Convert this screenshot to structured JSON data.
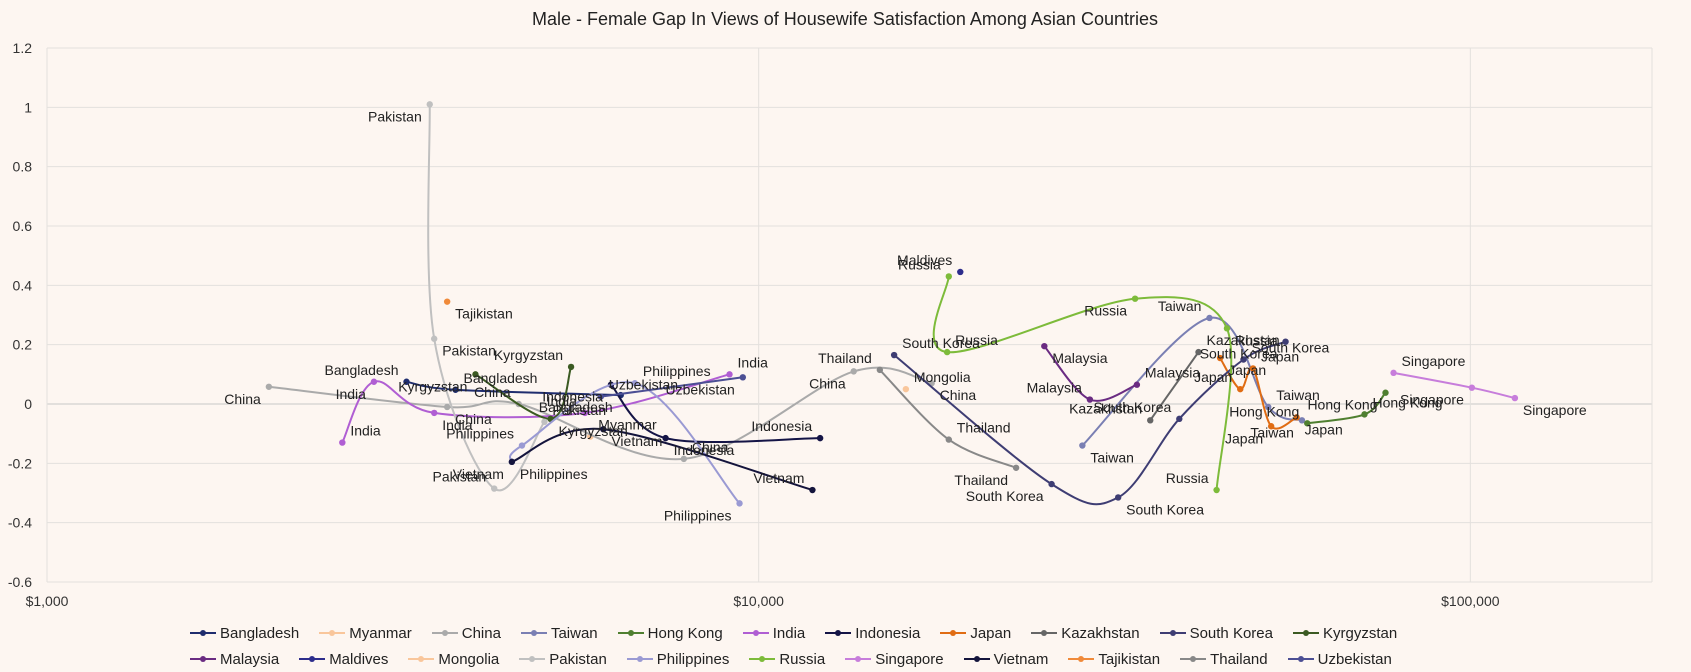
{
  "chart_data": {
    "type": "scatter",
    "title": "Male - Female Gap In Views of Housewife Satisfaction Among Asian Countries",
    "xlabel": "",
    "ylabel": "",
    "x_scale": "log",
    "xlim": [
      1000,
      180000
    ],
    "ylim": [
      -0.6,
      1.2
    ],
    "x_ticks": [
      1000,
      10000,
      100000
    ],
    "x_tick_labels": [
      "$1,000",
      "$10,000",
      "$100,000"
    ],
    "y_ticks": [
      -0.6,
      -0.4,
      -0.2,
      0,
      0.2,
      0.4,
      0.6,
      0.8,
      1,
      1.2
    ],
    "y_tick_labels": [
      "-0.6",
      "-0.4",
      "-0.2",
      "0",
      "0.2",
      "0.4",
      "0.6",
      "0.8",
      "1",
      "1.2"
    ],
    "grid": true,
    "legend_position": "bottom",
    "series": [
      {
        "name": "Bangladesh",
        "color": "#1f2d6e",
        "points": [
          {
            "x": 3200,
            "y": 0.075,
            "label": "Bangladesh"
          },
          {
            "x": 3750,
            "y": 0.048,
            "label": "Bangladesh"
          },
          {
            "x": 6400,
            "y": 0.03,
            "label": "Bangladesh"
          }
        ]
      },
      {
        "name": "Myanmar",
        "color": "#f9c69b",
        "points": [
          {
            "x": 5800,
            "y": -0.11,
            "label": "Myanmar"
          }
        ]
      },
      {
        "name": "China",
        "color": "#aaaaaa",
        "points": [
          {
            "x": 2050,
            "y": 0.058,
            "label": "China"
          },
          {
            "x": 3650,
            "y": -0.01,
            "label": "China"
          },
          {
            "x": 4600,
            "y": 0.0,
            "label": "China"
          },
          {
            "x": 7850,
            "y": -0.185,
            "label": "China"
          },
          {
            "x": 13600,
            "y": 0.11,
            "label": "China"
          },
          {
            "x": 17500,
            "y": 0.07,
            "label": "China"
          }
        ]
      },
      {
        "name": "Taiwan",
        "color": "#7a7fb3",
        "points": [
          {
            "x": 28500,
            "y": -0.14,
            "label": "Taiwan"
          },
          {
            "x": 43000,
            "y": 0.29,
            "label": "Taiwan"
          },
          {
            "x": 52000,
            "y": -0.01,
            "label": "Taiwan"
          },
          {
            "x": 58000,
            "y": -0.055,
            "label": "Taiwan"
          }
        ]
      },
      {
        "name": "Hong Kong",
        "color": "#4f7f30",
        "points": [
          {
            "x": 59000,
            "y": -0.065,
            "label": "Hong Kong"
          },
          {
            "x": 71000,
            "y": -0.035,
            "label": "Hong Kong"
          },
          {
            "x": 76000,
            "y": 0.038,
            "label": "Hong Kong"
          }
        ]
      },
      {
        "name": "India",
        "color": "#b05ed3",
        "points": [
          {
            "x": 2600,
            "y": -0.13,
            "label": "India"
          },
          {
            "x": 2880,
            "y": 0.075,
            "label": "India"
          },
          {
            "x": 3500,
            "y": -0.03,
            "label": "India"
          },
          {
            "x": 5700,
            "y": -0.03,
            "label": "India"
          },
          {
            "x": 9100,
            "y": 0.1,
            "label": "India"
          }
        ]
      },
      {
        "name": "Indonesia",
        "color": "#141446",
        "points": [
          {
            "x": 6200,
            "y": 0.065,
            "label": "Indonesia"
          },
          {
            "x": 7400,
            "y": -0.115,
            "label": "Indonesia"
          },
          {
            "x": 12200,
            "y": -0.115,
            "label": "Indonesia"
          }
        ]
      },
      {
        "name": "Japan",
        "color": "#e06c13",
        "points": [
          {
            "x": 44500,
            "y": 0.155,
            "label": "Japan"
          },
          {
            "x": 47500,
            "y": 0.05,
            "label": "Japan"
          },
          {
            "x": 49500,
            "y": 0.12,
            "label": "Japan"
          },
          {
            "x": 52500,
            "y": -0.075,
            "label": "Japan"
          },
          {
            "x": 57000,
            "y": -0.045,
            "label": "Japan"
          }
        ]
      },
      {
        "name": "Kazakhstan",
        "color": "#666666",
        "points": [
          {
            "x": 35500,
            "y": -0.055,
            "label": "Kazakhstan"
          },
          {
            "x": 41500,
            "y": 0.175,
            "label": "Kazakhstan"
          }
        ]
      },
      {
        "name": "South Korea",
        "color": "#3e3d73",
        "points": [
          {
            "x": 15500,
            "y": 0.165,
            "label": "South Korea"
          },
          {
            "x": 25800,
            "y": -0.27,
            "label": "South Korea"
          },
          {
            "x": 32000,
            "y": -0.315,
            "label": "South Korea"
          },
          {
            "x": 39000,
            "y": -0.05,
            "label": "South Korea"
          },
          {
            "x": 48000,
            "y": 0.15,
            "label": "South Korea"
          },
          {
            "x": 55000,
            "y": 0.21,
            "label": "South Korea"
          }
        ]
      },
      {
        "name": "Kyrgyzstan",
        "color": "#3b5a22",
        "points": [
          {
            "x": 4000,
            "y": 0.1,
            "label": "Kyrgyzstan"
          },
          {
            "x": 5100,
            "y": -0.05,
            "label": "Kyrgyzstan"
          },
          {
            "x": 5450,
            "y": 0.125,
            "label": "Kyrgyzstan"
          }
        ]
      },
      {
        "name": "Malaysia",
        "color": "#6a2b82",
        "points": [
          {
            "x": 25200,
            "y": 0.195,
            "label": "Malaysia"
          },
          {
            "x": 29200,
            "y": 0.015,
            "label": "Malaysia"
          },
          {
            "x": 34000,
            "y": 0.065,
            "label": "Malaysia"
          }
        ]
      },
      {
        "name": "Maldives",
        "color": "#2d2d8c",
        "points": [
          {
            "x": 19200,
            "y": 0.445,
            "label": "Maldives"
          }
        ]
      },
      {
        "name": "Mongolia",
        "color": "#f9c69b",
        "points": [
          {
            "x": 16100,
            "y": 0.05,
            "label": "Mongolia"
          }
        ]
      },
      {
        "name": "Pakistan",
        "color": "#c0c0c0",
        "points": [
          {
            "x": 3450,
            "y": 1.01,
            "label": "Pakistan"
          },
          {
            "x": 3500,
            "y": 0.22,
            "label": "Pakistan"
          },
          {
            "x": 4250,
            "y": -0.285,
            "label": "Pakistan"
          },
          {
            "x": 5000,
            "y": -0.06,
            "label": "Pakistan"
          }
        ]
      },
      {
        "name": "Philippines",
        "color": "#9a9ad3",
        "points": [
          {
            "x": 4500,
            "y": -0.195,
            "label": "Philippines"
          },
          {
            "x": 4650,
            "y": -0.14,
            "label": "Philippines"
          },
          {
            "x": 6700,
            "y": 0.07,
            "label": "Philippines"
          },
          {
            "x": 9400,
            "y": -0.335,
            "label": "Philippines"
          }
        ]
      },
      {
        "name": "Russia",
        "color": "#7dbb3a",
        "points": [
          {
            "x": 18500,
            "y": 0.43,
            "label": "Russia"
          },
          {
            "x": 18400,
            "y": 0.175,
            "label": "Russia"
          },
          {
            "x": 33800,
            "y": 0.355,
            "label": "Russia"
          },
          {
            "x": 45500,
            "y": 0.255,
            "label": "Russia"
          },
          {
            "x": 44000,
            "y": -0.29,
            "label": "Russia"
          }
        ]
      },
      {
        "name": "Singapore",
        "color": "#c77ddb",
        "points": [
          {
            "x": 78000,
            "y": 0.105,
            "label": "Singapore"
          },
          {
            "x": 100500,
            "y": 0.055,
            "label": "Singapore"
          },
          {
            "x": 115500,
            "y": 0.02,
            "label": "Singapore"
          }
        ]
      },
      {
        "name": "Vietnam",
        "color": "#14143c",
        "points": [
          {
            "x": 4500,
            "y": -0.195,
            "label": "Vietnam"
          },
          {
            "x": 6050,
            "y": -0.085,
            "label": "Vietnam"
          },
          {
            "x": 11900,
            "y": -0.29,
            "label": "Vietnam"
          }
        ]
      },
      {
        "name": "Tajikistan",
        "color": "#f08a3a",
        "points": [
          {
            "x": 3650,
            "y": 0.345,
            "label": "Tajikistan"
          }
        ]
      },
      {
        "name": "Thailand",
        "color": "#888888",
        "points": [
          {
            "x": 14800,
            "y": 0.115,
            "label": "Thailand"
          },
          {
            "x": 18500,
            "y": -0.12,
            "label": "Thailand"
          },
          {
            "x": 23000,
            "y": -0.215,
            "label": "Thailand"
          }
        ]
      },
      {
        "name": "Uzbekistan",
        "color": "#4c4f94",
        "points": [
          {
            "x": 6000,
            "y": 0.025,
            "label": "Uzbekistan"
          },
          {
            "x": 9500,
            "y": 0.09,
            "label": "Uzbekistan"
          }
        ]
      }
    ]
  }
}
